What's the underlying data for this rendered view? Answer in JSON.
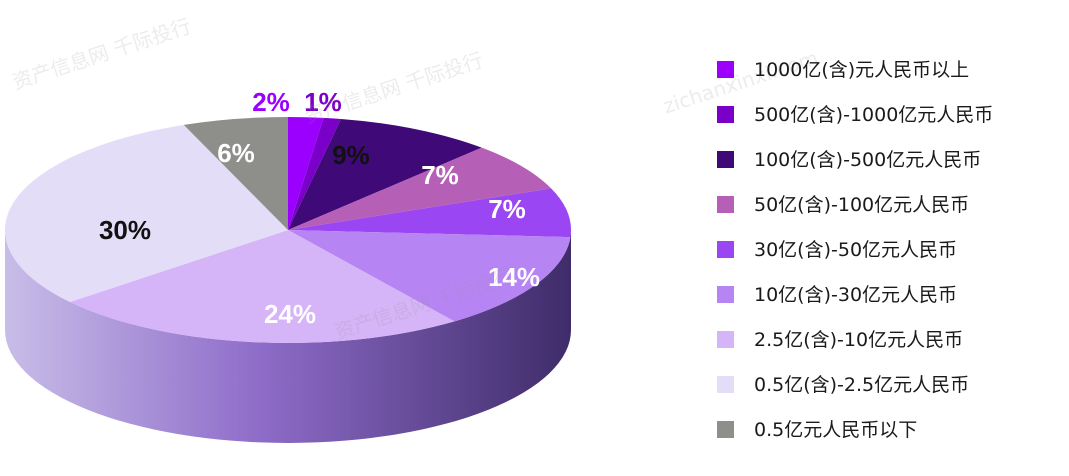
{
  "watermark": {
    "text1": "资产信息网 千际投行",
    "text2": "zichanxinxi.com"
  },
  "chart_data": {
    "type": "pie",
    "slices": [
      {
        "label": "1000亿(含)元人民币以上",
        "value": 2,
        "text": "2%",
        "color": "#9b00ff"
      },
      {
        "label": "500亿(含)-1000亿元人民币",
        "value": 1,
        "text": "1%",
        "color": "#7a00c9"
      },
      {
        "label": "100亿(含)-500亿元人民币",
        "value": 9,
        "text": "9%",
        "color": "#3f0a78"
      },
      {
        "label": "50亿(含)-100亿元人民币",
        "value": 7,
        "text": "7%",
        "color": "#b65fb6"
      },
      {
        "label": "30亿(含)-50亿元人民币",
        "value": 7,
        "text": "7%",
        "color": "#9a46f2"
      },
      {
        "label": "10亿(含)-30亿元人民币",
        "value": 14,
        "text": "14%",
        "color": "#b784f4"
      },
      {
        "label": "2.5亿(含)-10亿元人民币",
        "value": 24,
        "text": "24%",
        "color": "#d6b4f8"
      },
      {
        "label": "0.5亿(含)-2.5亿元人民币",
        "value": 30,
        "text": "30%",
        "color": "#e3ddf8"
      },
      {
        "label": "0.5亿元人民币以下",
        "value": 6,
        "text": "6%",
        "color": "#8e8e8a"
      }
    ]
  }
}
